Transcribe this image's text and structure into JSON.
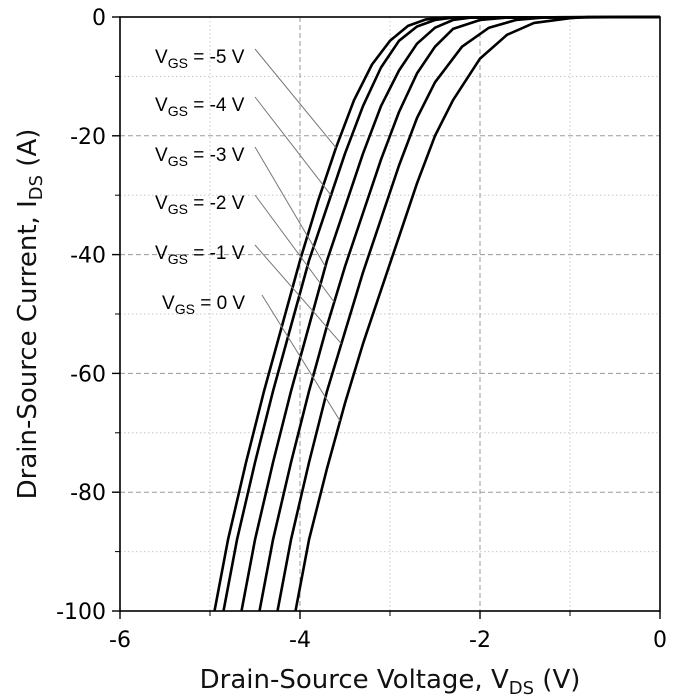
{
  "chart_data": {
    "type": "line",
    "xlabel": "Drain-Source Voltage, V",
    "xlabel_sub": "DS",
    "xlabel_unit": " (V)",
    "ylabel": "Drain-Source Current, I",
    "ylabel_sub": "DS",
    "ylabel_unit": " (A)",
    "xlim": [
      -6,
      0
    ],
    "ylim": [
      -100,
      0
    ],
    "x_ticks": [
      "-6",
      "-4",
      "-2",
      "0"
    ],
    "y_ticks": [
      "0",
      "-20",
      "-40",
      "-60",
      "-80",
      "-100"
    ],
    "grid": true,
    "series": [
      {
        "name": "V_GS = -5 V",
        "prefix": "V",
        "sub": "GS",
        "suffix": " = -5 V",
        "points": [
          [
            -4.95,
            -100
          ],
          [
            -4.8,
            -88
          ],
          [
            -4.6,
            -75
          ],
          [
            -4.4,
            -63
          ],
          [
            -4.2,
            -52
          ],
          [
            -4.0,
            -41
          ],
          [
            -3.8,
            -31
          ],
          [
            -3.6,
            -22
          ],
          [
            -3.4,
            -14
          ],
          [
            -3.2,
            -8
          ],
          [
            -3.0,
            -4
          ],
          [
            -2.8,
            -1.5
          ],
          [
            -2.6,
            -0.4
          ],
          [
            -2.4,
            -0.1
          ],
          [
            0,
            0
          ]
        ]
      },
      {
        "name": "V_GS = -4 V",
        "prefix": "V",
        "sub": "GS",
        "suffix": " = -4 V",
        "points": [
          [
            -4.85,
            -100
          ],
          [
            -4.7,
            -88
          ],
          [
            -4.5,
            -75
          ],
          [
            -4.3,
            -63
          ],
          [
            -4.1,
            -52
          ],
          [
            -3.9,
            -41
          ],
          [
            -3.7,
            -32
          ],
          [
            -3.5,
            -23
          ],
          [
            -3.3,
            -15
          ],
          [
            -3.1,
            -8.5
          ],
          [
            -2.9,
            -4
          ],
          [
            -2.7,
            -1.6
          ],
          [
            -2.5,
            -0.5
          ],
          [
            -2.3,
            -0.1
          ],
          [
            0,
            0
          ]
        ]
      },
      {
        "name": "V_GS = -3 V",
        "prefix": "V",
        "sub": "GS",
        "suffix": " = -3 V",
        "points": [
          [
            -4.65,
            -100
          ],
          [
            -4.5,
            -88
          ],
          [
            -4.3,
            -75
          ],
          [
            -4.1,
            -63
          ],
          [
            -3.9,
            -52
          ],
          [
            -3.7,
            -41
          ],
          [
            -3.5,
            -32
          ],
          [
            -3.3,
            -23
          ],
          [
            -3.1,
            -15
          ],
          [
            -2.9,
            -9
          ],
          [
            -2.7,
            -4.5
          ],
          [
            -2.5,
            -1.8
          ],
          [
            -2.3,
            -0.5
          ],
          [
            -2.1,
            -0.1
          ],
          [
            0,
            0
          ]
        ]
      },
      {
        "name": "V_GS = -2 V",
        "prefix": "V",
        "sub": "GS",
        "suffix": " = -2 V",
        "points": [
          [
            -4.45,
            -100
          ],
          [
            -4.3,
            -88
          ],
          [
            -4.1,
            -75
          ],
          [
            -3.9,
            -63
          ],
          [
            -3.7,
            -52
          ],
          [
            -3.5,
            -42
          ],
          [
            -3.3,
            -33
          ],
          [
            -3.1,
            -24
          ],
          [
            -2.9,
            -16
          ],
          [
            -2.7,
            -9.5
          ],
          [
            -2.5,
            -5
          ],
          [
            -2.3,
            -2
          ],
          [
            -2.0,
            -0.5
          ],
          [
            -1.7,
            -0.1
          ],
          [
            0,
            0
          ]
        ]
      },
      {
        "name": "V_GS = -1 V",
        "prefix": "V",
        "sub": "GS",
        "suffix": " = -1 V",
        "points": [
          [
            -4.25,
            -100
          ],
          [
            -4.1,
            -88
          ],
          [
            -3.9,
            -75
          ],
          [
            -3.7,
            -63
          ],
          [
            -3.5,
            -53
          ],
          [
            -3.3,
            -43
          ],
          [
            -3.1,
            -34
          ],
          [
            -2.9,
            -25
          ],
          [
            -2.7,
            -17
          ],
          [
            -2.5,
            -11
          ],
          [
            -2.2,
            -5
          ],
          [
            -1.9,
            -1.8
          ],
          [
            -1.6,
            -0.5
          ],
          [
            -1.3,
            -0.1
          ],
          [
            0,
            0
          ]
        ]
      },
      {
        "name": "V_GS = 0 V",
        "prefix": "V",
        "sub": "GS",
        "suffix": " = 0 V",
        "points": [
          [
            -4.05,
            -100
          ],
          [
            -3.9,
            -88
          ],
          [
            -3.7,
            -76
          ],
          [
            -3.5,
            -65
          ],
          [
            -3.3,
            -55
          ],
          [
            -3.1,
            -46
          ],
          [
            -2.9,
            -37
          ],
          [
            -2.7,
            -28
          ],
          [
            -2.5,
            -20
          ],
          [
            -2.3,
            -14
          ],
          [
            -2.0,
            -7
          ],
          [
            -1.7,
            -3
          ],
          [
            -1.4,
            -1
          ],
          [
            -1.0,
            -0.2
          ],
          [
            -0.8,
            0
          ],
          [
            0,
            0
          ]
        ]
      }
    ],
    "label_positions_note": ""
  }
}
